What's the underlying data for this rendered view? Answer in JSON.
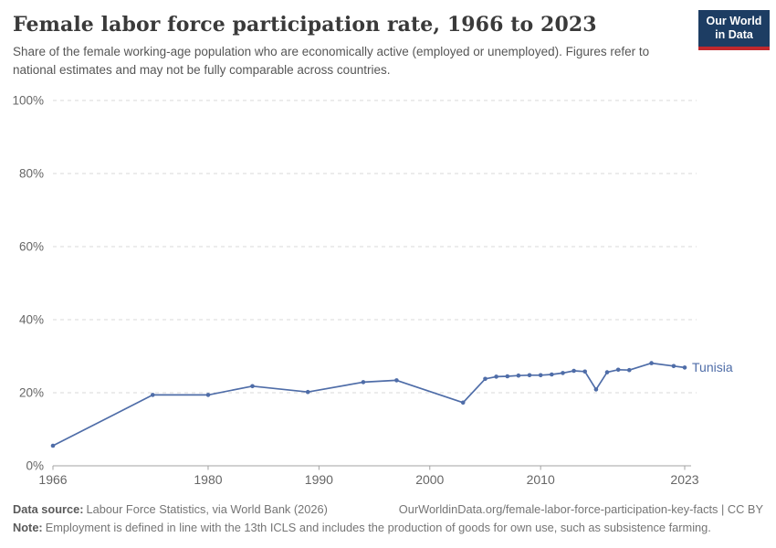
{
  "header": {
    "title": "Female labor force participation rate, 1966 to 2023",
    "subtitle": "Share of the female working-age population who are economically active (employed or unemployed). Figures refer to national estimates and may not be fully comparable across countries.",
    "logo": {
      "line1": "Our World",
      "line2": "in Data",
      "bg_color": "#1d3d63",
      "stripe_color": "#c0282d"
    }
  },
  "chart_data": {
    "type": "line",
    "title": "Female labor force participation rate, 1966 to 2023",
    "xlabel": "",
    "ylabel": "",
    "xlim": [
      1966,
      2023
    ],
    "ylim": [
      0,
      100
    ],
    "grid": "dashed-horizontal",
    "legend_position": "end-of-line-label",
    "x_ticks": [
      1966,
      1980,
      1990,
      2000,
      2010,
      2023
    ],
    "y_ticks": [
      0,
      20,
      40,
      60,
      80,
      100
    ],
    "y_tick_suffix": "%",
    "series": [
      {
        "name": "Tunisia",
        "color": "#4f6da8",
        "points": [
          [
            1966,
            5.5
          ],
          [
            1975,
            19.4
          ],
          [
            1980,
            19.4
          ],
          [
            1984,
            21.8
          ],
          [
            1989,
            20.2
          ],
          [
            1994,
            22.9
          ],
          [
            1997,
            23.4
          ],
          [
            2003,
            17.3
          ],
          [
            2005,
            23.8
          ],
          [
            2006,
            24.4
          ],
          [
            2007,
            24.5
          ],
          [
            2008,
            24.7
          ],
          [
            2009,
            24.8
          ],
          [
            2010,
            24.8
          ],
          [
            2011,
            25.0
          ],
          [
            2012,
            25.4
          ],
          [
            2013,
            26.0
          ],
          [
            2014,
            25.8
          ],
          [
            2015,
            20.9
          ],
          [
            2016,
            25.6
          ],
          [
            2017,
            26.3
          ],
          [
            2018,
            26.2
          ],
          [
            2020,
            28.1
          ],
          [
            2022,
            27.3
          ],
          [
            2023,
            26.9
          ]
        ]
      }
    ]
  },
  "footer": {
    "data_source_label": "Data source:",
    "data_source_text": "Labour Force Statistics, via World Bank (2026)",
    "url_text": "OurWorldinData.org/female-labor-force-participation-key-facts | CC BY",
    "note_label": "Note:",
    "note_text": "Employment is defined in line with the 13th ICLS and includes the production of goods for own use, such as subsistence farming."
  },
  "colors": {
    "title": "#3a3a3a",
    "subtitle": "#565656",
    "axis_label": "#666666",
    "gridline": "#dadada",
    "axis_line": "#a3a3a3",
    "line": "#4f6da8"
  }
}
